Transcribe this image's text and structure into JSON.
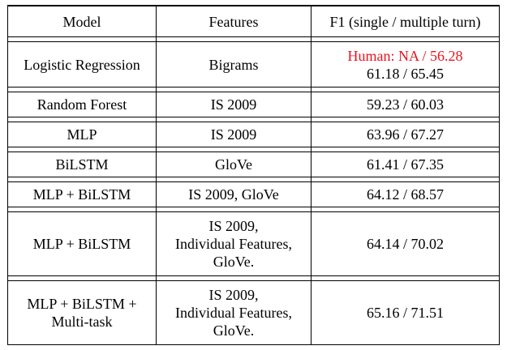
{
  "table": {
    "headers": {
      "model": "Model",
      "features": "Features",
      "f1": "F1 (single / multiple turn)"
    },
    "rows": [
      {
        "model": [
          "Logistic Regression"
        ],
        "features": [
          "Bigrams"
        ],
        "human": "Human: NA / 56.28",
        "f1": "61.18 / 65.45"
      },
      {
        "model": [
          "Random Forest"
        ],
        "features": [
          "IS 2009"
        ],
        "f1": "59.23 / 60.03"
      },
      {
        "model": [
          "MLP"
        ],
        "features": [
          "IS 2009"
        ],
        "f1": "63.96 / 67.27"
      },
      {
        "model": [
          "BiLSTM"
        ],
        "features": [
          "GloVe"
        ],
        "f1": "61.41 / 67.35"
      },
      {
        "model": [
          "MLP + BiLSTM"
        ],
        "features": [
          "IS 2009, GloVe"
        ],
        "f1": "64.12 / 68.57"
      },
      {
        "model": [
          "MLP + BiLSTM"
        ],
        "features": [
          "IS 2009,",
          "Individual Features,",
          "GloVe."
        ],
        "f1": "64.14 / 70.02"
      },
      {
        "model": [
          "MLP + BiLSTM +",
          "Multi-task"
        ],
        "features": [
          "IS 2009,",
          "Individual Features,",
          "GloVe."
        ],
        "f1": "65.16 / 71.51"
      }
    ],
    "colors": {
      "human_highlight": "#e8141e",
      "rule": "#000000"
    }
  }
}
